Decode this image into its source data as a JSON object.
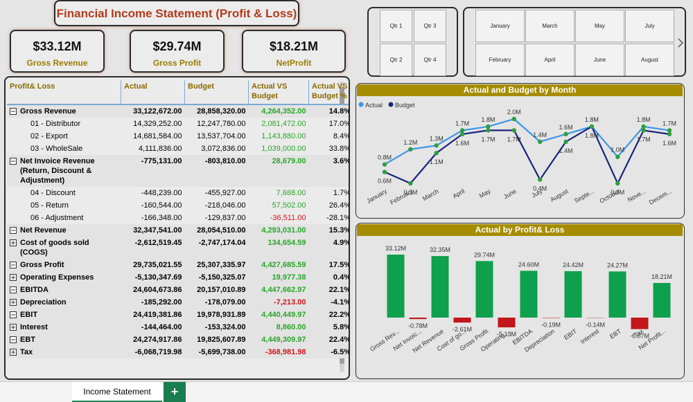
{
  "title": "Financial Income Statement (Profit & Loss)",
  "kpis": [
    {
      "value": "$33.12M",
      "label": "Gross Revenue"
    },
    {
      "value": "$29.74M",
      "label": "Gross Profit"
    },
    {
      "value": "$18.21M",
      "label": "NetProfit"
    }
  ],
  "quarters": [
    "Qtr 1",
    "Qtr 3",
    "Qtr 2",
    "Qtr 4"
  ],
  "months": [
    "January",
    "March",
    "May",
    "July",
    "February",
    "April",
    "June",
    "August"
  ],
  "table": {
    "columns": [
      "Profit& Loss",
      "Actual",
      "Budget",
      "Actual VS Budget",
      "Actual VS Budget %"
    ],
    "rows": [
      {
        "label": "Gross Revenue",
        "expanded": true,
        "cells": [
          "33,122,672.00",
          "28,858,320.00",
          "4,264,352.00",
          "14.8%"
        ]
      },
      {
        "label": "01 - Distributor",
        "child": true,
        "cells": [
          "14,329,252.00",
          "12,247,780.00",
          "2,081,472.00",
          "17.0%"
        ]
      },
      {
        "label": "02 - Export",
        "child": true,
        "cells": [
          "14,681,584.00",
          "13,537,704.00",
          "1,143,880.00",
          "8.4%"
        ]
      },
      {
        "label": "03 - WholeSale",
        "child": true,
        "cells": [
          "4,111,836.00",
          "3,072,836.00",
          "1,039,000.00",
          "33.8%"
        ]
      },
      {
        "label": "Net Invoice Revenue (Return, Discount & Adjustment)",
        "expanded": true,
        "cells": [
          "-775,131.00",
          "-803,810.00",
          "28,679.00",
          "3.6%"
        ]
      },
      {
        "label": "04 - Discount",
        "child": true,
        "cells": [
          "-448,239.00",
          "-455,927.00",
          "7,688.00",
          "1.7%"
        ]
      },
      {
        "label": "05 - Return",
        "child": true,
        "cells": [
          "-160,544.00",
          "-218,046.00",
          "57,502.00",
          "26.4%"
        ]
      },
      {
        "label": "06 - Adjustment",
        "child": true,
        "cells": [
          "-166,348.00",
          "-129,837.00",
          "-36,511.00",
          "-28.1%"
        ]
      },
      {
        "label": "Net Revenue",
        "expanded": true,
        "cells": [
          "32,347,541.00",
          "28,054,510.00",
          "4,293,031.00",
          "15.3%"
        ]
      },
      {
        "label": "Cost of goods sold (COGS)",
        "expanded": false,
        "cells": [
          "-2,612,519.45",
          "-2,747,174.04",
          "134,654.59",
          "4.9%"
        ]
      },
      {
        "label": "Gross Profit",
        "expanded": true,
        "cells": [
          "29,735,021.55",
          "25,307,335.97",
          "4,427,685.59",
          "17.5%"
        ]
      },
      {
        "label": "Operating Expenses",
        "expanded": false,
        "cells": [
          "-5,130,347.69",
          "-5,150,325.07",
          "19,977.38",
          "0.4%"
        ]
      },
      {
        "label": "EBITDA",
        "expanded": true,
        "cells": [
          "24,604,673.86",
          "20,157,010.89",
          "4,447,662.97",
          "22.1%"
        ]
      },
      {
        "label": "Depreciation",
        "expanded": false,
        "cells": [
          "-185,292.00",
          "-178,079.00",
          "-7,213.00",
          "-4.1%"
        ]
      },
      {
        "label": "EBIT",
        "expanded": true,
        "cells": [
          "24,419,381.86",
          "19,978,931.89",
          "4,440,449.97",
          "22.2%"
        ]
      },
      {
        "label": "Interest",
        "expanded": false,
        "cells": [
          "-144,464.00",
          "-153,324.00",
          "8,860.00",
          "5.8%"
        ]
      },
      {
        "label": "EBT",
        "expanded": true,
        "cells": [
          "24,274,917.86",
          "19,825,607.89",
          "4,449,309.97",
          "22.4%"
        ]
      },
      {
        "label": "Tax",
        "expanded": false,
        "cells": [
          "-6,068,719.98",
          "-5,699,738.00",
          "-368,981.98",
          "-6.5%"
        ]
      }
    ]
  },
  "chart_data": [
    {
      "type": "line",
      "title": "Actual and Budget by Month",
      "legend": "top-left",
      "marker_color": "#2e9e3e",
      "categories": [
        "January",
        "February",
        "March",
        "April",
        "May",
        "June",
        "July",
        "August",
        "Septe...",
        "October",
        "Nove...",
        "Decem..."
      ],
      "series": [
        {
          "name": "Actual",
          "color": "#3d96e6",
          "values": [
            0.8,
            1.2,
            1.3,
            1.7,
            1.8,
            2.0,
            1.4,
            1.6,
            1.8,
            1.0,
            1.8,
            1.7
          ],
          "value_labels": [
            "0.8M",
            "1.2M",
            "1.3M",
            "1.7M",
            "1.8M",
            "2.0M",
            "1.4M",
            "1.6M",
            "1.8M",
            "1.0M",
            "1.8M",
            "1.7M"
          ]
        },
        {
          "name": "Budget",
          "color": "#1a237e",
          "values": [
            0.6,
            0.3,
            1.1,
            1.6,
            1.7,
            1.7,
            0.4,
            1.4,
            1.8,
            0.3,
            1.7,
            1.6
          ],
          "value_labels": [
            "0.6M",
            "0.3M",
            "1.1M",
            "1.6M",
            "1.7M",
            "1.7M",
            "0.4M",
            "1.4M",
            "1.8M",
            "0.3M",
            "1.7M",
            "1.6M"
          ]
        }
      ]
    },
    {
      "type": "bar",
      "title": "Actual by Profit& Loss",
      "positive_color": "#0ea04c",
      "negative_color": "#c0161c",
      "categories": [
        "Gross Rev...",
        "Net Invoic...",
        "Net Revenue",
        "Cost of go...",
        "Gross Profit",
        "Operating ...",
        "EBITDA",
        "Depreciation",
        "EBIT",
        "Interest",
        "EBT",
        "Tax",
        "Net Profit..."
      ],
      "values": [
        33.12,
        -0.78,
        32.35,
        -2.61,
        29.74,
        -5.13,
        24.6,
        -0.19,
        24.42,
        -0.14,
        24.27,
        -6.07,
        18.21
      ],
      "value_labels": [
        "33.12M",
        "-0.78M",
        "32.35M",
        "-2.61M",
        "29.74M",
        "-5.13M",
        "24.60M",
        "-0.19M",
        "24.42M",
        "-0.14M",
        "24.27M",
        "-6.07M",
        "18.21M"
      ]
    }
  ],
  "tabs": {
    "active": "Income Statement",
    "add": "+"
  }
}
